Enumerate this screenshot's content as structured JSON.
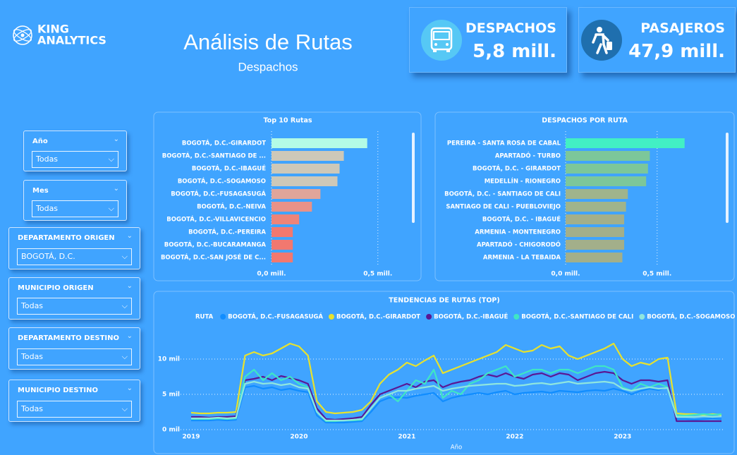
{
  "logo": {
    "line1": "KING",
    "line2": "ANALYTICS"
  },
  "header": {
    "title": "Análisis de Rutas",
    "subtitle": "Despachos"
  },
  "kpis": [
    {
      "label": "DESPACHOS",
      "value": "5,8 mill."
    },
    {
      "label": "PASAJEROS",
      "value": "47,9 mill."
    }
  ],
  "filters": [
    {
      "label": "Año",
      "value": "Todas"
    },
    {
      "label": "Mes",
      "value": "Todas"
    },
    {
      "label": "DEPARTAMENTO ORIGEN",
      "value": "BOGOTÁ, D.C."
    },
    {
      "label": "MUNICIPIO ORIGEN",
      "value": "Todas"
    },
    {
      "label": "DEPARTAMENTO DESTINO",
      "value": "Todas"
    },
    {
      "label": "MUNICIPIO DESTINO",
      "value": "Todas"
    }
  ],
  "chart_data": [
    {
      "type": "bar",
      "title": "Top 10 Rutas",
      "categories": [
        "BOGOTÁ, D.C.-GIRARDOT",
        "BOGOTÁ, D.C.-SANTIAGO DE ...",
        "BOGOTÁ, D.C.-IBAGUÉ",
        "BOGOTÁ, D.C.-SOGAMOSO",
        "BOGOTÁ, D.C.-FUSAGASUGÁ",
        "BOGOTÁ, D.C.-NEIVA",
        "BOGOTÁ, D.C.-VILLAVICENCIO",
        "BOGOTÁ, D.C.-PEREIRA",
        "BOGOTÁ, D.C.-BUCARAMANGA",
        "BOGOTÁ, D.C.-SAN JOSÉ DE C..."
      ],
      "values": [
        0.45,
        0.34,
        0.32,
        0.31,
        0.23,
        0.19,
        0.13,
        0.1,
        0.1,
        0.1
      ],
      "colors": [
        "#b3fbe6",
        "#cdc8b8",
        "#cdc8b8",
        "#cdc8b8",
        "#e0a59a",
        "#e89288",
        "#ee8478",
        "#f2786f",
        "#f2786f",
        "#f2786f"
      ],
      "xlim": [
        0,
        0.65
      ],
      "xticks": [
        {
          "value": 0,
          "label": "0,0 mill."
        },
        {
          "value": 0.5,
          "label": "0,5 mill."
        }
      ],
      "grid": true
    },
    {
      "type": "bar",
      "title": "DESPACHOS POR RUTA",
      "categories": [
        "PEREIRA - SANTA ROSA DE CABAL",
        "APARTADÓ - TURBO",
        "BOGOTÁ, D.C. - GIRARDOT",
        "MEDELLÍN - RIONEGRO",
        "BOGOTÁ, D.C. - SANTIAGO DE CALI",
        "SANTIAGO DE CALI - PUEBLOVIEJO",
        "BOGOTÁ, D.C. - IBAGUÉ",
        "ARMENIA - MONTENEGRO",
        "APARTADÓ - CHIGORODÓ",
        "ARMENIA - LA TEBAIDA"
      ],
      "values": [
        0.65,
        0.46,
        0.45,
        0.44,
        0.34,
        0.33,
        0.32,
        0.32,
        0.32,
        0.31
      ],
      "colors": [
        "#42f0c4",
        "#7cc79a",
        "#7cc79a",
        "#7cc79a",
        "#9fb48c",
        "#9fb48c",
        "#a3af8a",
        "#a3af8a",
        "#a3af8a",
        "#a3af8a"
      ],
      "xlim": [
        0,
        0.84
      ],
      "xticks": [
        {
          "value": 0,
          "label": "0,0 mill."
        },
        {
          "value": 0.5,
          "label": "0,5 mill."
        }
      ],
      "grid": true
    },
    {
      "type": "line",
      "title": "TENDENCIAS DE RUTAS (TOP)",
      "legend_title": "RUTA",
      "xlabel": "Año",
      "categories": [
        "2019",
        null,
        null,
        null,
        null,
        null,
        null,
        null,
        null,
        null,
        null,
        null,
        "2020",
        null,
        null,
        null,
        null,
        null,
        null,
        null,
        null,
        null,
        null,
        null,
        "2021",
        null,
        null,
        null,
        null,
        null,
        null,
        null,
        null,
        null,
        null,
        null,
        "2022",
        null,
        null,
        null,
        null,
        null,
        null,
        null,
        null,
        null,
        null,
        null,
        "2023",
        null,
        null,
        null,
        null,
        null,
        null,
        null,
        null,
        null,
        null,
        null
      ],
      "series": [
        {
          "name": "BOGOTÁ, D.C.-FUSAGASUGÁ",
          "color": "#118dff",
          "values": [
            1.3,
            1.3,
            1.3,
            1.4,
            1.3,
            1.4,
            6.0,
            6.2,
            5.8,
            6.0,
            5.6,
            5.8,
            5.5,
            5.3,
            2.0,
            1.0,
            1.0,
            1.0,
            1.1,
            1.2,
            2.5,
            4.0,
            4.5,
            4.6,
            4.5,
            4.8,
            5.0,
            5.2,
            4.0,
            4.5,
            4.8,
            5.0,
            5.2,
            5.0,
            5.3,
            5.5,
            5.0,
            5.2,
            5.3,
            5.4,
            5.2,
            5.5,
            5.4,
            5.3,
            5.5,
            5.6,
            5.5,
            5.8,
            5.5,
            5.0,
            5.5,
            5.8,
            5.6,
            6.0,
            1.5,
            1.5,
            1.4,
            1.5,
            1.6,
            1.5
          ]
        },
        {
          "name": "BOGOTÁ, D.C.-GIRARDOT",
          "color": "#e8e22c",
          "values": [
            2.4,
            2.3,
            2.3,
            2.4,
            2.4,
            2.5,
            10.5,
            11.0,
            10.5,
            10.8,
            11.5,
            12.2,
            11.8,
            10.5,
            4.0,
            2.5,
            2.3,
            2.4,
            2.5,
            2.8,
            4.0,
            6.5,
            7.8,
            8.5,
            9.5,
            9.0,
            9.8,
            10.5,
            8.0,
            8.5,
            9.0,
            9.5,
            10.0,
            10.5,
            11.0,
            12.0,
            11.5,
            11.0,
            11.2,
            12.0,
            11.5,
            11.8,
            10.5,
            10.0,
            10.5,
            11.0,
            11.5,
            12.2,
            10.0,
            9.0,
            9.5,
            9.2,
            10.0,
            10.2,
            2.3,
            2.2,
            2.2,
            2.1,
            2.2,
            2.1
          ]
        },
        {
          "name": "BOGOTÁ, D.C.-IBAGUÉ",
          "color": "#5a1894",
          "values": [
            1.8,
            1.8,
            1.7,
            1.8,
            1.8,
            1.9,
            7.0,
            7.2,
            7.5,
            7.0,
            7.6,
            7.3,
            7.0,
            6.5,
            3.0,
            1.5,
            1.4,
            1.5,
            1.6,
            1.8,
            3.5,
            5.0,
            5.5,
            6.0,
            6.5,
            6.0,
            6.8,
            7.0,
            6.0,
            6.5,
            6.8,
            7.0,
            7.5,
            7.8,
            7.5,
            8.0,
            7.5,
            7.2,
            7.8,
            8.0,
            7.5,
            8.0,
            7.8,
            7.0,
            7.5,
            8.0,
            8.2,
            8.0,
            7.0,
            6.5,
            7.0,
            7.0,
            6.8,
            7.0,
            1.2,
            1.2,
            1.2,
            1.2,
            1.2,
            1.2
          ]
        },
        {
          "name": "BOGOTÁ, D.C.-SANTIAGO DE CALI",
          "color": "#3fe6c4",
          "values": [
            1.5,
            1.5,
            1.5,
            1.6,
            1.5,
            1.6,
            7.5,
            8.5,
            7.0,
            8.0,
            7.0,
            7.5,
            6.5,
            6.0,
            2.5,
            1.2,
            1.2,
            1.3,
            1.3,
            1.4,
            3.0,
            4.5,
            5.0,
            4.0,
            5.5,
            7.0,
            6.5,
            8.5,
            4.5,
            5.5,
            5.0,
            6.5,
            7.0,
            8.0,
            8.5,
            9.0,
            7.5,
            8.0,
            8.5,
            8.5,
            8.0,
            8.5,
            8.5,
            8.0,
            8.5,
            9.0,
            9.0,
            8.5,
            6.0,
            5.5,
            6.5,
            6.0,
            6.5,
            6.0,
            2.0,
            2.0,
            2.1,
            2.2,
            2.1,
            2.2
          ]
        },
        {
          "name": "BOGOTÁ, D.C.-SOGAMOSO",
          "color": "#8fe6de",
          "values": [
            1.6,
            1.6,
            1.6,
            1.7,
            1.6,
            1.7,
            6.5,
            6.8,
            6.5,
            6.6,
            6.3,
            6.5,
            6.0,
            5.8,
            2.5,
            1.3,
            1.3,
            1.3,
            1.4,
            1.5,
            3.0,
            4.5,
            5.0,
            5.5,
            5.5,
            5.8,
            6.0,
            6.2,
            5.5,
            5.8,
            6.0,
            6.2,
            6.3,
            6.4,
            6.5,
            6.5,
            6.2,
            6.3,
            6.5,
            6.6,
            6.4,
            6.6,
            6.8,
            6.5,
            6.6,
            6.7,
            6.8,
            6.6,
            5.8,
            5.5,
            5.8,
            6.0,
            5.8,
            5.9,
            1.8,
            1.8,
            1.8,
            1.9,
            1.8,
            1.9
          ]
        }
      ],
      "ylim": [
        0,
        12.5
      ],
      "yticks": [
        {
          "value": 0,
          "label": "0 mil"
        },
        {
          "value": 5,
          "label": "5 mil"
        },
        {
          "value": 10,
          "label": "10 mil"
        }
      ],
      "grid": true
    }
  ]
}
